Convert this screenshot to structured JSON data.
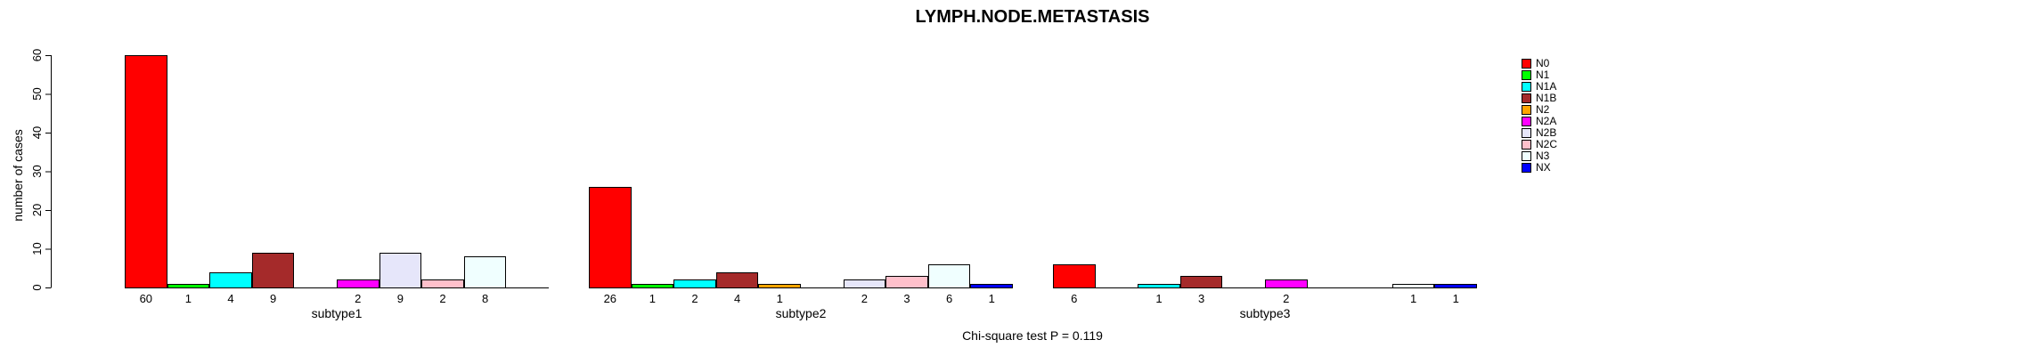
{
  "figure": {
    "title": "LYMPH.NODE.METASTASIS",
    "ylabel": "number of cases",
    "caption": "Chi-square test P = 0.119"
  },
  "chart_data": {
    "type": "bar",
    "title": "LYMPH.NODE.METASTASIS",
    "ylabel": "number of cases",
    "xlabel": "",
    "ylim": [
      0,
      60
    ],
    "yticks": [
      0,
      10,
      20,
      30,
      40,
      50,
      60
    ],
    "grid": false,
    "legend_position": "right",
    "categories": [
      "N0",
      "N1",
      "N1A",
      "N1B",
      "N2",
      "N2A",
      "N2B",
      "N2C",
      "N3",
      "NX"
    ],
    "colors": [
      "#ff0000",
      "#00ff00",
      "#00ffff",
      "#a52a2a",
      "#ffa500",
      "#ff00ff",
      "#e6e6fa",
      "#ffc0cb",
      "#f0ffff",
      "#0000ff"
    ],
    "series": [
      {
        "name": "subtype1",
        "values": [
          60,
          1,
          4,
          9,
          0,
          2,
          9,
          2,
          8,
          0
        ]
      },
      {
        "name": "subtype2",
        "values": [
          26,
          1,
          2,
          4,
          1,
          0,
          2,
          3,
          6,
          1
        ]
      },
      {
        "name": "subtype3",
        "values": [
          6,
          0,
          1,
          3,
          0,
          2,
          0,
          0,
          1,
          1
        ]
      }
    ],
    "bar_value_labels_shown": true,
    "annotation": "Chi-square test P = 0.119"
  }
}
